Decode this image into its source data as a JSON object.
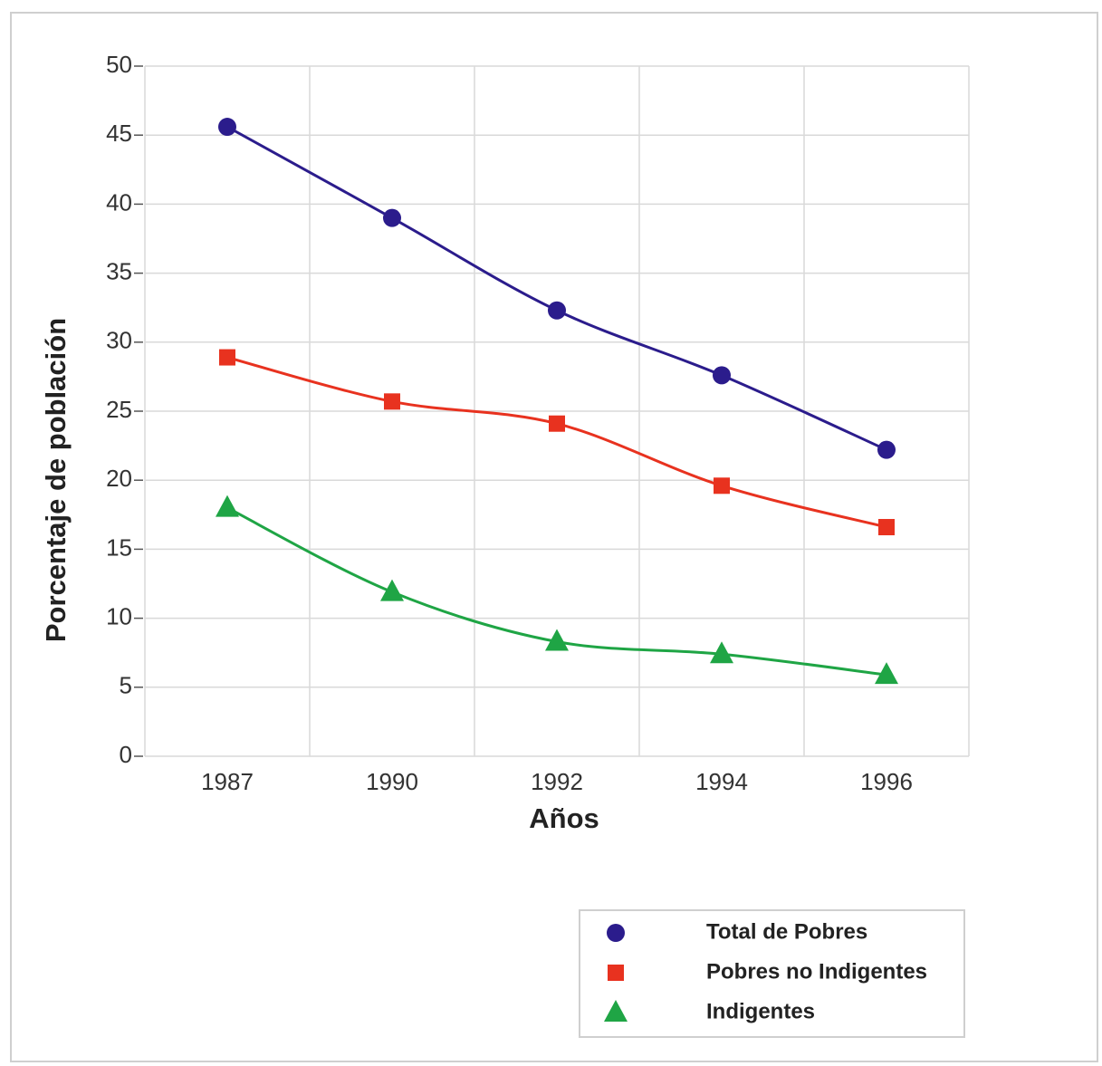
{
  "chart_data": {
    "type": "line",
    "x_label": "Años",
    "y_label": "Porcentaje de población",
    "categories": [
      "1987",
      "1990",
      "1992",
      "1994",
      "1996"
    ],
    "series": [
      {
        "name": "Total de Pobres",
        "color": "#2b1c8c",
        "marker": "circle",
        "values": [
          45.6,
          39.0,
          32.3,
          27.6,
          22.2
        ]
      },
      {
        "name": "Pobres no Indigentes",
        "color": "#e8321f",
        "marker": "square",
        "values": [
          28.9,
          25.7,
          24.1,
          19.6,
          16.6
        ]
      },
      {
        "name": "Indigentes",
        "color": "#1fa545",
        "marker": "triangle",
        "values": [
          18.0,
          11.9,
          8.3,
          7.4,
          5.9
        ]
      }
    ],
    "ylim": [
      0,
      50
    ],
    "yticks": [
      0,
      5,
      10,
      15,
      20,
      25,
      30,
      35,
      40,
      45,
      50
    ],
    "grid": true,
    "legend": "lower right"
  }
}
